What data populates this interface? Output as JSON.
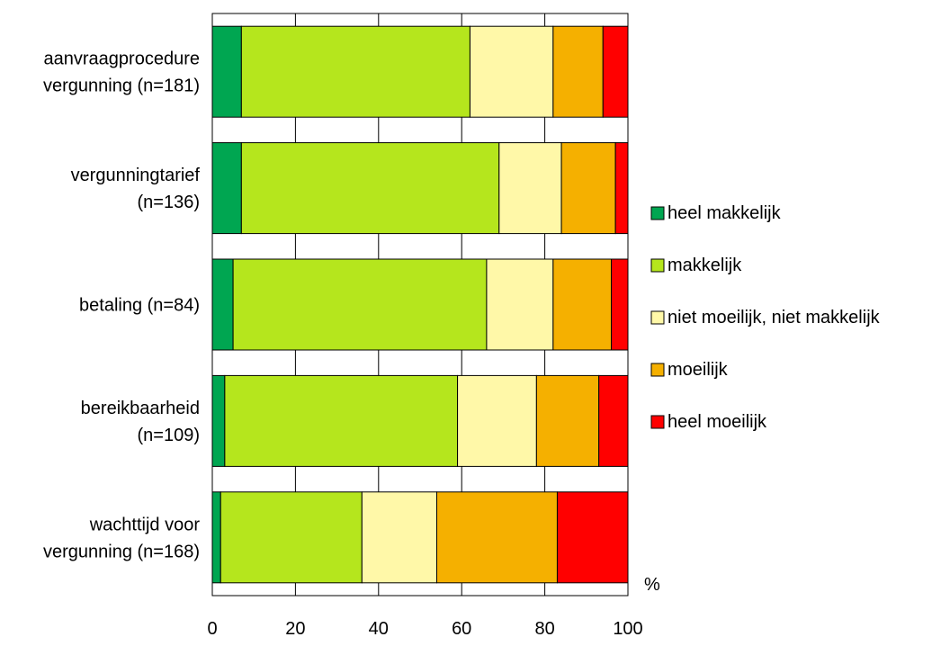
{
  "chart_data": {
    "type": "bar",
    "orientation": "horizontal",
    "stacked": true,
    "xlim": [
      0,
      100
    ],
    "x_ticks": [
      0,
      20,
      40,
      60,
      80,
      100
    ],
    "x_unit": "%",
    "grid": "vertical",
    "legend_position": "right",
    "categories": [
      [
        "aanvraagprocedure",
        "vergunning (n=181)"
      ],
      [
        "vergunningtarief",
        "(n=136)"
      ],
      [
        "betaling (n=84)"
      ],
      [
        "bereikbaarheid",
        "(n=109)"
      ],
      [
        "wachttijd voor",
        "vergunning (n=168)"
      ]
    ],
    "series": [
      {
        "name": "heel makkelijk",
        "color": "#00a651",
        "values": [
          7,
          7,
          5,
          3,
          2
        ]
      },
      {
        "name": "makkelijk",
        "color": "#b5e61d",
        "values": [
          55,
          62,
          61,
          56,
          34
        ]
      },
      {
        "name": "niet moeilijk, niet makkelijk",
        "color": "#fff8a8",
        "values": [
          20,
          15,
          16,
          19,
          18
        ]
      },
      {
        "name": "moeilijk",
        "color": "#f5b000",
        "values": [
          12,
          13,
          14,
          15,
          29
        ]
      },
      {
        "name": "heel moeilijk",
        "color": "#ff0000",
        "values": [
          6,
          3,
          4,
          7,
          17
        ]
      }
    ]
  }
}
